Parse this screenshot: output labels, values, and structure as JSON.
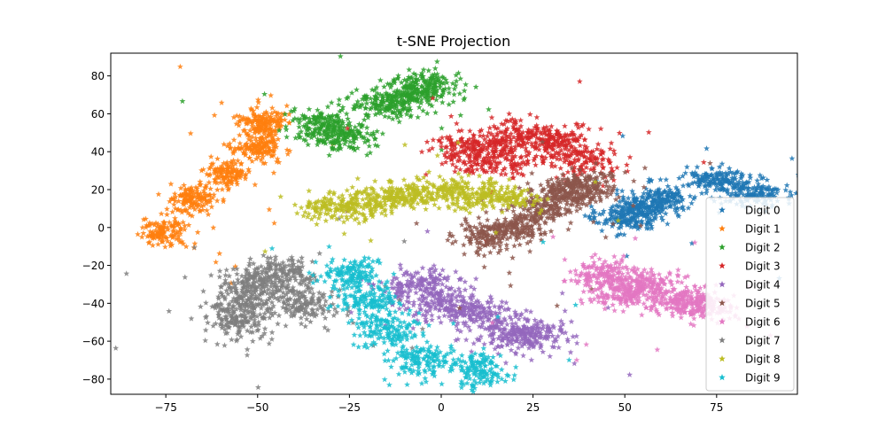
{
  "chart_data": {
    "type": "scatter",
    "title": "t-SNE Projection",
    "xlabel": "",
    "ylabel": "",
    "xlim": [
      -90,
      97
    ],
    "ylim": [
      -88,
      92
    ],
    "xticks": [
      -75,
      -50,
      -25,
      0,
      25,
      50,
      75
    ],
    "yticks": [
      -80,
      -60,
      -40,
      -20,
      0,
      20,
      40,
      60,
      80
    ],
    "xtick_labels": [
      "−75",
      "−50",
      "−25",
      "0",
      "25",
      "50",
      "75"
    ],
    "ytick_labels": [
      "−80",
      "−60",
      "−40",
      "−20",
      "0",
      "20",
      "40",
      "60",
      "80"
    ],
    "grid": false,
    "legend_position": "lower-right",
    "marker": "star",
    "series": [
      {
        "name": "Digit 0",
        "color": "#1f77b4",
        "count": 700,
        "clusters": [
          [
            [
              60,
              15
            ],
            [
              55,
              10
            ],
            [
              75,
              25
            ],
            [
              85,
              18
            ],
            [
              50,
              5
            ]
          ]
        ],
        "spread": [
          8,
          6
        ]
      },
      {
        "name": "Digit 1",
        "color": "#ff7f0e",
        "count": 700,
        "clusters": [
          [
            [
              -75,
              -2
            ],
            [
              -68,
              15
            ],
            [
              -58,
              28
            ],
            [
              -50,
              42
            ],
            [
              -48,
              55
            ]
          ]
        ],
        "spread": [
          6,
          7
        ]
      },
      {
        "name": "Digit 2",
        "color": "#2ca02c",
        "count": 700,
        "clusters": [
          [
            [
              -28,
              48
            ],
            [
              -32,
              55
            ],
            [
              -15,
              65
            ],
            [
              -8,
              70
            ],
            [
              -4,
              75
            ]
          ]
        ],
        "spread": [
          9,
          7
        ]
      },
      {
        "name": "Digit 3",
        "color": "#d62728",
        "count": 700,
        "clusters": [
          [
            [
              8,
              42
            ],
            [
              20,
              48
            ],
            [
              30,
              45
            ],
            [
              38,
              35
            ],
            [
              15,
              35
            ]
          ]
        ],
        "spread": [
          10,
          8
        ]
      },
      {
        "name": "Digit 4",
        "color": "#9467bd",
        "count": 700,
        "clusters": [
          [
            [
              -5,
              -30
            ],
            [
              0,
              -40
            ],
            [
              10,
              -45
            ],
            [
              20,
              -55
            ],
            [
              25,
              -58
            ]
          ]
        ],
        "spread": [
          10,
          8
        ]
      },
      {
        "name": "Digit 5",
        "color": "#8c564b",
        "count": 700,
        "clusters": [
          [
            [
              12,
              -5
            ],
            [
              20,
              0
            ],
            [
              28,
              10
            ],
            [
              35,
              18
            ],
            [
              40,
              22
            ]
          ]
        ],
        "spread": [
          8,
          7
        ]
      },
      {
        "name": "Digit 6",
        "color": "#e377c2",
        "count": 700,
        "clusters": [
          [
            [
              45,
              -25
            ],
            [
              55,
              -30
            ],
            [
              65,
              -38
            ],
            [
              72,
              -42
            ],
            [
              50,
              -35
            ]
          ]
        ],
        "spread": [
          9,
          7
        ]
      },
      {
        "name": "Digit 7",
        "color": "#7f7f7f",
        "count": 700,
        "clusters": [
          [
            [
              -55,
              -40
            ],
            [
              -50,
              -30
            ],
            [
              -42,
              -25
            ],
            [
              -38,
              -40
            ],
            [
              -55,
              -50
            ]
          ]
        ],
        "spread": [
          8,
          9
        ]
      },
      {
        "name": "Digit 8",
        "color": "#bcbd22",
        "count": 700,
        "clusters": [
          [
            [
              -28,
              10
            ],
            [
              -15,
              15
            ],
            [
              -5,
              18
            ],
            [
              5,
              20
            ],
            [
              15,
              15
            ]
          ]
        ],
        "spread": [
          12,
          6
        ]
      },
      {
        "name": "Digit 9",
        "color": "#17becf",
        "count": 700,
        "clusters": [
          [
            [
              -25,
              -25
            ],
            [
              -20,
              -40
            ],
            [
              -15,
              -55
            ],
            [
              -5,
              -70
            ],
            [
              10,
              -75
            ]
          ]
        ],
        "spread": [
          8,
          8
        ]
      }
    ]
  }
}
